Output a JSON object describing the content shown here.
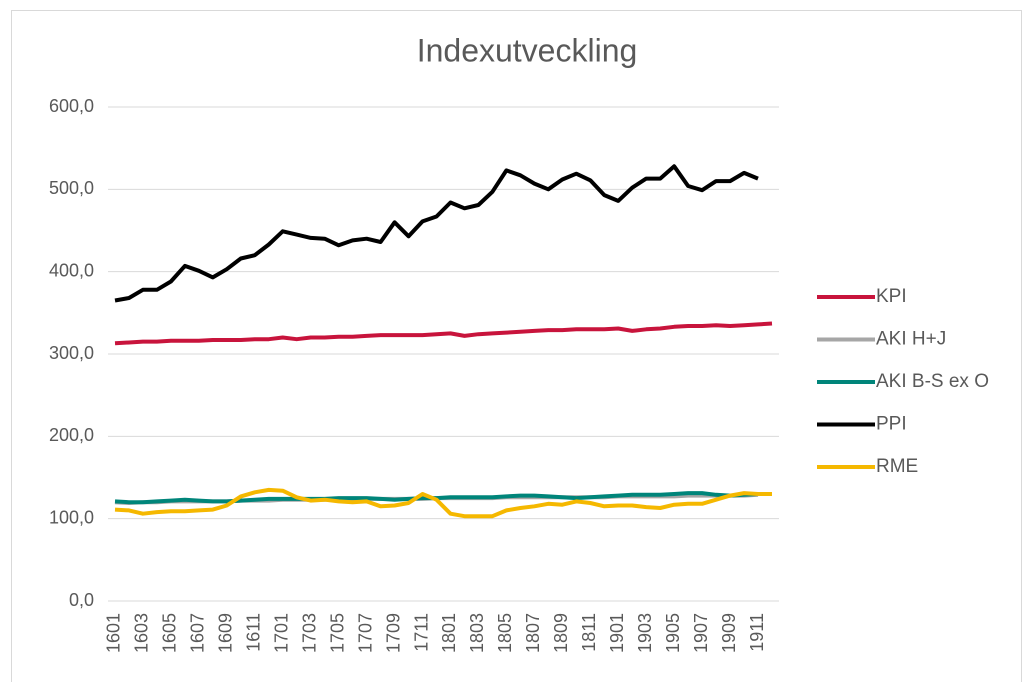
{
  "chart_data": {
    "type": "line",
    "title": "Indexutveckling",
    "categories": [
      "1601",
      null,
      "1603",
      null,
      "1605",
      null,
      "1607",
      null,
      "1609",
      null,
      "1611",
      null,
      "1701",
      null,
      "1703",
      null,
      "1705",
      null,
      "1707",
      null,
      "1709",
      null,
      "1711",
      null,
      "1801",
      null,
      "1803",
      null,
      "1805",
      null,
      "1807",
      null,
      "1809",
      null,
      "1811",
      null,
      "1901",
      null,
      "1903",
      null,
      "1905",
      null,
      "1907",
      null,
      "1909",
      null,
      "1911",
      null
    ],
    "ylim": [
      0,
      600
    ],
    "yticks": [
      {
        "value": 0,
        "label": "0,0"
      },
      {
        "value": 100,
        "label": "100,0"
      },
      {
        "value": 200,
        "label": "200,0"
      },
      {
        "value": 300,
        "label": "300,0"
      },
      {
        "value": 400,
        "label": "400,0"
      },
      {
        "value": 500,
        "label": "500,0"
      },
      {
        "value": 600,
        "label": "600,0"
      }
    ],
    "grid": true,
    "legend": "right",
    "series": [
      {
        "name": "KPI",
        "color": "#c8143c",
        "values": [
          313,
          314,
          315,
          315,
          316,
          316,
          316,
          317,
          317,
          317,
          318,
          318,
          320,
          318,
          320,
          320,
          321,
          321,
          322,
          323,
          323,
          323,
          323,
          324,
          325,
          322,
          324,
          325,
          326,
          327,
          328,
          329,
          329,
          330,
          330,
          330,
          331,
          328,
          330,
          331,
          333,
          334,
          334,
          335,
          334,
          335,
          336,
          337
        ]
      },
      {
        "name": "AKI H+J",
        "color": "#a6a6a6",
        "values": [
          120,
          119,
          120,
          120,
          121,
          121,
          121,
          121,
          121,
          122,
          122,
          122,
          123,
          123,
          123,
          123,
          124,
          124,
          124,
          124,
          124,
          124,
          124,
          125,
          125,
          125,
          125,
          125,
          126,
          126,
          126,
          126,
          126,
          126,
          126,
          126,
          127,
          127,
          127,
          127,
          127,
          128,
          128,
          128,
          128,
          128,
          129,
          null
        ]
      },
      {
        "name": "AKI B-S ex O",
        "color": "#00857a",
        "values": [
          121,
          120,
          120,
          121,
          122,
          123,
          122,
          121,
          121,
          122,
          123,
          124,
          124,
          124,
          124,
          124,
          125,
          125,
          125,
          124,
          123,
          124,
          125,
          125,
          126,
          126,
          126,
          126,
          127,
          128,
          128,
          127,
          126,
          125,
          126,
          127,
          128,
          129,
          129,
          129,
          130,
          131,
          131,
          129,
          128,
          129,
          130,
          null
        ]
      },
      {
        "name": "PPI",
        "color": "#000000",
        "values": [
          365,
          368,
          378,
          378,
          388,
          407,
          401,
          393,
          403,
          416,
          420,
          433,
          449,
          445,
          441,
          440,
          432,
          438,
          440,
          436,
          460,
          443,
          461,
          467,
          484,
          477,
          481,
          497,
          523,
          517,
          507,
          500,
          512,
          519,
          511,
          493,
          486,
          502,
          513,
          513,
          528,
          504,
          499,
          510,
          510,
          520,
          513,
          null
        ]
      },
      {
        "name": "RME",
        "color": "#f5b800",
        "values": [
          111,
          110,
          106,
          108,
          109,
          109,
          110,
          111,
          116,
          127,
          132,
          135,
          134,
          126,
          122,
          123,
          121,
          120,
          121,
          115,
          116,
          119,
          130,
          123,
          106,
          103,
          103,
          103,
          110,
          113,
          115,
          118,
          117,
          121,
          119,
          115,
          116,
          116,
          114,
          113,
          117,
          118,
          118,
          123,
          128,
          131,
          130,
          130
        ]
      }
    ]
  }
}
